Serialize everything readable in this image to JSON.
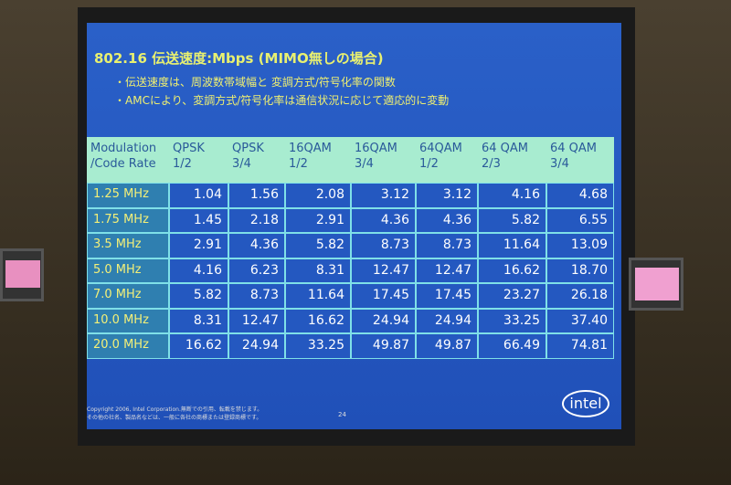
{
  "slide": {
    "title": "802.16 伝送速度:Mbps (MIMO無しの場合)",
    "bullets": [
      "・伝送速度は、周波数帯域幅と 変調方式/符号化率の関数",
      "・AMCにより、変調方式/符号化率は通信状況に応じて適応的に変動"
    ],
    "table": {
      "header": [
        [
          "Modulation",
          "/Code Rate"
        ],
        [
          "QPSK",
          "1/2"
        ],
        [
          "QPSK",
          "3/4"
        ],
        [
          "16QAM",
          "1/2"
        ],
        [
          "16QAM",
          "3/4"
        ],
        [
          "64QAM",
          "1/2"
        ],
        [
          "64 QAM",
          "2/3"
        ],
        [
          "64 QAM",
          "3/4"
        ]
      ],
      "rows": [
        [
          "1.25 MHz",
          "1.04",
          "1.56",
          "2.08",
          "3.12",
          "3.12",
          "4.16",
          "4.68"
        ],
        [
          "1.75 MHz",
          "1.45",
          "2.18",
          "2.91",
          "4.36",
          "4.36",
          "5.82",
          "6.55"
        ],
        [
          "3.5 MHz",
          "2.91",
          "4.36",
          "5.82",
          "8.73",
          "8.73",
          "11.64",
          "13.09"
        ],
        [
          "5.0 MHz",
          "4.16",
          "6.23",
          "8.31",
          "12.47",
          "12.47",
          "16.62",
          "18.70"
        ],
        [
          "7.0 MHz",
          "5.82",
          "8.73",
          "11.64",
          "17.45",
          "17.45",
          "23.27",
          "26.18"
        ],
        [
          "10.0 MHz",
          "8.31",
          "12.47",
          "16.62",
          "24.94",
          "24.94",
          "33.25",
          "37.40"
        ],
        [
          "20.0 MHz",
          "16.62",
          "24.94",
          "33.25",
          "49.87",
          "49.87",
          "66.49",
          "74.81"
        ]
      ]
    },
    "footer": {
      "copyright": "Copyright 2006, Intel Corporation.無断での引用、転載を禁じます。",
      "note": "その他の社名、製品名などは、一般に各社の商標または登録商標です。",
      "page": "24",
      "logo": "intel"
    }
  }
}
